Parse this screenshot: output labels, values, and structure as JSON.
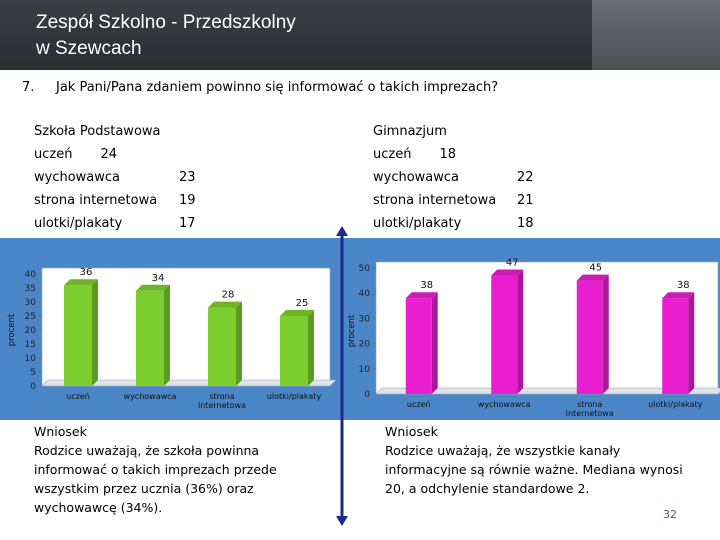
{
  "header": {
    "title_line1": "Zespół Szkolno - Przedszkolny",
    "title_line2": "w Szewcach"
  },
  "question": {
    "number": "7.",
    "text": "Jak Pani/Pana zdaniem powinno się informować o takich imprezach?"
  },
  "left_block": {
    "title": "Szkoła Podstawowa",
    "rows": [
      {
        "label": "uczeń",
        "value": "24"
      },
      {
        "label": "wychowawca",
        "value": "23"
      },
      {
        "label": "strona internetowa",
        "value": "19"
      },
      {
        "label": "ulotki/plakaty",
        "value": "17"
      }
    ]
  },
  "right_block": {
    "title": "Gimnazjum",
    "rows": [
      {
        "label": "uczeń",
        "value": "18"
      },
      {
        "label": "wychowawca",
        "value": "22"
      },
      {
        "label": "strona internetowa",
        "value": "21"
      },
      {
        "label": "ulotki/plakaty",
        "value": "18"
      }
    ]
  },
  "chart_data": [
    {
      "type": "bar",
      "title": "Szkoła Podstawowa",
      "categories": [
        "uczeń",
        "wychowawca",
        "strona internetowa",
        "ulotki/plakaty"
      ],
      "category_labels": [
        [
          "uczeń"
        ],
        [
          "wychowawca"
        ],
        [
          "strona",
          "internetowa"
        ],
        [
          "ulotki/plakaty"
        ]
      ],
      "values": [
        36,
        34,
        28,
        25
      ],
      "ylabel": "procent",
      "ylim": [
        0,
        40
      ],
      "yticks": [
        0,
        5,
        10,
        15,
        20,
        25,
        30,
        35,
        40
      ],
      "color": "#7ccd2e"
    },
    {
      "type": "bar",
      "title": "Gimnazjum",
      "categories": [
        "uczeń",
        "wychowawca",
        "strona internetowa",
        "ulotki/plakaty"
      ],
      "category_labels": [
        [
          "uczeń"
        ],
        [
          "wychowawca"
        ],
        [
          "strona",
          "internetowa"
        ],
        [
          "ulotki/plakaty"
        ]
      ],
      "values": [
        38,
        47,
        45,
        38
      ],
      "ylabel": "procent",
      "ylim": [
        0,
        50
      ],
      "yticks": [
        0,
        10,
        20,
        30,
        40,
        50
      ],
      "color": "#e81ed0"
    }
  ],
  "conclusions": {
    "left_heading": "Wniosek",
    "left_text": "Rodzice uważają, że szkoła powinna informować o takich imprezach przede wszystkim przez ucznia (36%) oraz wychowawcę (34%).",
    "right_heading": "Wniosek",
    "right_text": "Rodzice uważają, że wszystkie kanały informacyjne są równie ważne. Mediana wynosi 20, a odchylenie standardowe 2."
  },
  "page_number": "32",
  "colors": {
    "header_bg": "#2f3236",
    "band_blue": "#4a86c8",
    "arrow": "#1a2d8a"
  }
}
